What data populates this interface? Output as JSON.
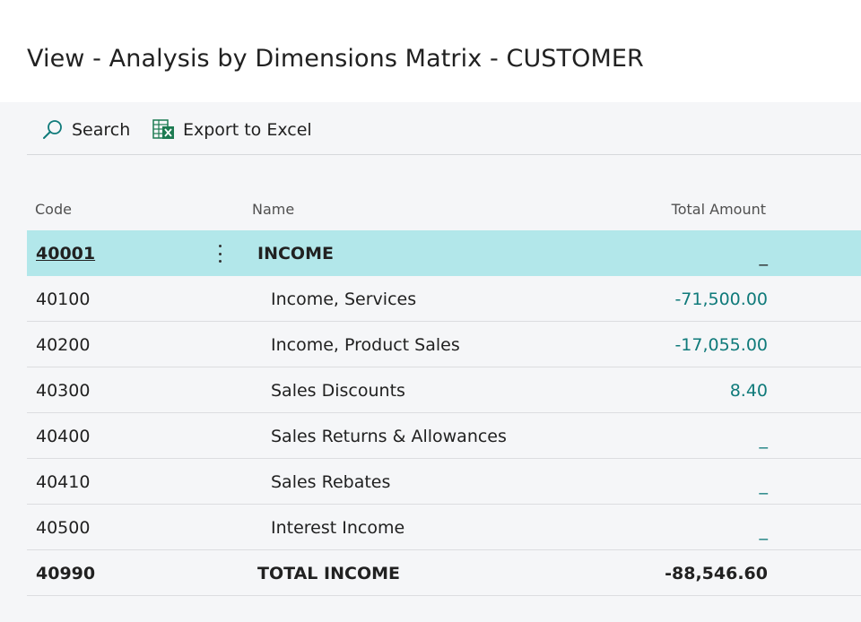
{
  "page": {
    "title": "View - Analysis by Dimensions Matrix - CUSTOMER"
  },
  "toolbar": {
    "search": {
      "label": "Search",
      "icon": "search-icon"
    },
    "export": {
      "label": "Export to Excel",
      "icon": "excel-icon"
    }
  },
  "columns": {
    "code": "Code",
    "name": "Name",
    "amount": "Total Amount"
  },
  "colors": {
    "accent": "#0f7a7a",
    "selected_row": "#b2e7ea",
    "excel_green": "#1d7b52"
  },
  "rows": [
    {
      "code": "40001",
      "name": "INCOME",
      "amount": "_",
      "selected": true,
      "indent": 0
    },
    {
      "code": "40100",
      "name": "Income, Services",
      "amount": "-71,500.00",
      "indent": 1
    },
    {
      "code": "40200",
      "name": "Income, Product Sales",
      "amount": "-17,055.00",
      "indent": 1
    },
    {
      "code": "40300",
      "name": "Sales Discounts",
      "amount": "8.40",
      "indent": 1
    },
    {
      "code": "40400",
      "name": "Sales Returns & Allowances",
      "amount": "_",
      "indent": 1
    },
    {
      "code": "40410",
      "name": "Sales Rebates",
      "amount": "_",
      "indent": 1
    },
    {
      "code": "40500",
      "name": "Interest Income",
      "amount": "_",
      "indent": 1
    },
    {
      "code": "40990",
      "name": "TOTAL INCOME",
      "amount": "-88,546.60",
      "total": true,
      "indent": 0
    }
  ]
}
